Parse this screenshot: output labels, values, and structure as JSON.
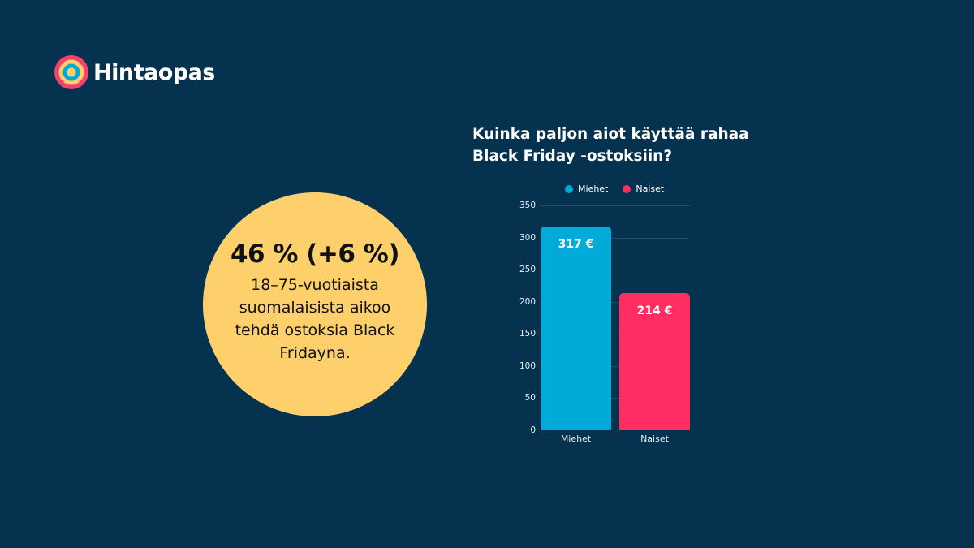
{
  "brand": {
    "name": "Hintaopas",
    "colors": {
      "background": "#04324f",
      "circle": "#fdd06b",
      "men": "#00aad9",
      "women": "#ff2e62"
    }
  },
  "highlight": {
    "headline": "46 % (+6 %)",
    "body": "18–75-vuotiaista suomalaisista aikoo tehdä ostoksia Black Fridayna."
  },
  "chart_data": {
    "type": "bar",
    "title": "Kuinka paljon aiot käyttää rahaa Black Friday -ostoksiin?",
    "categories": [
      "Miehet",
      "Naiset"
    ],
    "values": [
      317,
      214
    ],
    "value_labels": [
      "317 €",
      "214 €"
    ],
    "colors": [
      "#00aad9",
      "#ff2e62"
    ],
    "legend": [
      {
        "label": "Miehet",
        "color": "#00aad9"
      },
      {
        "label": "Naiset",
        "color": "#ff2e62"
      }
    ],
    "legend_position": "top",
    "xlabel": "",
    "ylabel": "",
    "ylim": [
      0,
      350
    ],
    "yticks": [
      0,
      50,
      100,
      150,
      200,
      250,
      300,
      350
    ],
    "grid": true,
    "unit": "€"
  }
}
